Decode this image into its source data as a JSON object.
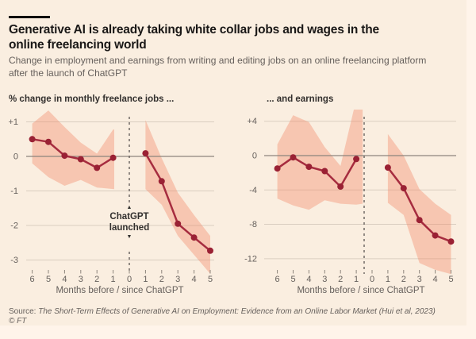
{
  "header": {
    "title_line1": "Generative AI is already taking white collar jobs and wages in the",
    "title_line2": "online freelancing world",
    "subtitle_line1": "Change in employment and earnings from writing and editing jobs on an online freelancing platform",
    "subtitle_line2": "after the launch of ChatGPT"
  },
  "colors": {
    "page_bg": "#fff4ea",
    "card_bg": "#faeee0",
    "title_text": "#1a1817",
    "muted_text": "#66605c",
    "heading_text": "#33302e",
    "grid": "#d9cdc0",
    "zero_line": "#8d857c",
    "band": "rgba(243,134,101,0.38)",
    "line": "#a62c3f",
    "point": "#9a2134",
    "dashed": "#66605c",
    "tick": "#8d857c"
  },
  "chart_data": [
    {
      "id": "jobs",
      "type": "line",
      "heading": "% change in monthly freelance jobs ...",
      "x_axis_title": "Months before / since ChatGPT",
      "ylim": [
        -3.5,
        1.4
      ],
      "y_ticks": [
        {
          "value": 1,
          "label": "+1"
        },
        {
          "value": 0,
          "label": "0"
        },
        {
          "value": -1,
          "label": "-1"
        },
        {
          "value": -2,
          "label": "-2"
        },
        {
          "value": -3,
          "label": "-3"
        }
      ],
      "x_ticks": [
        {
          "month": -6,
          "label": "6"
        },
        {
          "month": -5,
          "label": "5"
        },
        {
          "month": -4,
          "label": "4"
        },
        {
          "month": -3,
          "label": "3"
        },
        {
          "month": -2,
          "label": "2"
        },
        {
          "month": -1,
          "label": "1"
        },
        {
          "month": 0,
          "label": "0"
        },
        {
          "month": 1,
          "label": "1"
        },
        {
          "month": 2,
          "label": "2"
        },
        {
          "month": 3,
          "label": "3"
        },
        {
          "month": 4,
          "label": "4"
        },
        {
          "month": 5,
          "label": "5"
        }
      ],
      "pre": {
        "months": [
          -6,
          -5,
          -4,
          -3,
          -2,
          -1
        ],
        "values": [
          0.5,
          0.42,
          0.02,
          -0.08,
          -0.33,
          -0.04
        ]
      },
      "post": {
        "months": [
          1,
          2,
          3,
          4,
          5
        ],
        "values": [
          0.09,
          -0.72,
          -1.95,
          -2.35,
          -2.73
        ]
      },
      "band_pre": {
        "top": [
          [
            -6,
            0.95
          ],
          [
            -5,
            1.33
          ],
          [
            -4,
            0.85
          ],
          [
            -3,
            0.4
          ],
          [
            -2,
            0.08
          ],
          [
            -1,
            0.78
          ],
          [
            -0.93,
            0.78
          ]
        ],
        "bottom": [
          [
            -6,
            -0.2
          ],
          [
            -5,
            -0.6
          ],
          [
            -4,
            -0.85
          ],
          [
            -3,
            -0.68
          ],
          [
            -2,
            -0.9
          ],
          [
            -0.93,
            -0.95
          ]
        ]
      },
      "band_post": {
        "top": [
          [
            1,
            1.05
          ],
          [
            2,
            -0.05
          ],
          [
            3,
            -1.05
          ],
          [
            4,
            -1.7
          ],
          [
            5,
            -2.3
          ]
        ],
        "bottom": [
          [
            1,
            -0.95
          ],
          [
            2,
            -1.4
          ],
          [
            3,
            -2.3
          ],
          [
            4,
            -2.85
          ],
          [
            5,
            -3.4
          ]
        ]
      },
      "annotation": {
        "arrow_up": "▲",
        "line1": "ChatGPT",
        "line2": "launched",
        "arrow_down": "▼"
      }
    },
    {
      "id": "earnings",
      "type": "line",
      "heading": "... and earnings",
      "x_axis_title": "Months before / since ChatGPT",
      "ylim": [
        -14,
        5.5
      ],
      "y_ticks": [
        {
          "value": 4,
          "label": "+4"
        },
        {
          "value": 0,
          "label": "0"
        },
        {
          "value": -4,
          "label": "-4"
        },
        {
          "value": -8,
          "label": "-8"
        },
        {
          "value": -12,
          "label": "-12"
        }
      ],
      "x_ticks": [
        {
          "month": -6,
          "label": "6"
        },
        {
          "month": -5,
          "label": "5"
        },
        {
          "month": -4,
          "label": "4"
        },
        {
          "month": -3,
          "label": "3"
        },
        {
          "month": -2,
          "label": "2"
        },
        {
          "month": -1,
          "label": "1"
        },
        {
          "month": 0,
          "label": "0"
        },
        {
          "month": 1,
          "label": "1"
        },
        {
          "month": 2,
          "label": "2"
        },
        {
          "month": 3,
          "label": "3"
        },
        {
          "month": 4,
          "label": "4"
        },
        {
          "month": 5,
          "label": "5"
        }
      ],
      "pre": {
        "months": [
          -6,
          -5,
          -4,
          -3,
          -2,
          -1
        ],
        "values": [
          -1.5,
          -0.2,
          -1.3,
          -1.8,
          -3.6,
          -0.4
        ]
      },
      "post": {
        "months": [
          1,
          2,
          3,
          4,
          5
        ],
        "values": [
          -1.4,
          -3.8,
          -7.5,
          -9.3,
          -10.0
        ]
      },
      "band_pre": {
        "top": [
          [
            -6,
            1.3
          ],
          [
            -5,
            4.7
          ],
          [
            -4,
            3.9
          ],
          [
            -3,
            1.0
          ],
          [
            -2,
            -1.2
          ],
          [
            -1.15,
            5.4
          ],
          [
            -0.6,
            5.4
          ]
        ],
        "bottom": [
          [
            -6,
            -5.0
          ],
          [
            -5,
            -5.8
          ],
          [
            -4,
            -6.3
          ],
          [
            -3,
            -5.2
          ],
          [
            -2,
            -5.6
          ],
          [
            -1,
            -5.7
          ],
          [
            -0.6,
            -5.6
          ]
        ]
      },
      "band_post": {
        "top": [
          [
            1,
            2.5
          ],
          [
            2,
            0.0
          ],
          [
            3,
            -3.9
          ],
          [
            4,
            -5.6
          ],
          [
            5,
            -6.9
          ]
        ],
        "bottom": [
          [
            1,
            -5.5
          ],
          [
            2,
            -6.9
          ],
          [
            3,
            -12.5
          ],
          [
            4,
            -13.3
          ],
          [
            5,
            -13.8
          ]
        ]
      }
    }
  ],
  "footer": {
    "source_prefix": "Source: ",
    "source_title": "The Short-Term Effects of Generative AI on Employment: Evidence from an Online Labor Market (Hui et al, 2023)",
    "copyright": "© FT"
  }
}
